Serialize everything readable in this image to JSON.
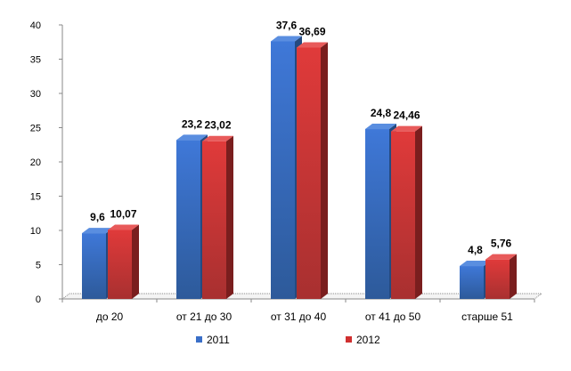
{
  "chart_data": {
    "type": "bar",
    "title": "",
    "xlabel": "",
    "ylabel": "",
    "ylim": [
      0,
      40
    ],
    "yticks": [
      0,
      5,
      10,
      15,
      20,
      25,
      30,
      35,
      40
    ],
    "categories": [
      "до 20",
      "от 21  до 30",
      "от 31  до 40",
      "от 41  до 50",
      "старше 51"
    ],
    "series": [
      {
        "name": "2011",
        "color": "#3a6fc8",
        "values": [
          9.6,
          23.2,
          37.6,
          24.8,
          4.8
        ],
        "labels": [
          "9,6",
          "23,2",
          "37,6",
          "24,8",
          "4,8"
        ]
      },
      {
        "name": "2012",
        "color": "#d03030",
        "values": [
          10.07,
          23.02,
          36.69,
          24.46,
          5.76
        ],
        "labels": [
          "10,07",
          "23,02",
          "36,69",
          "24,46",
          "5,76"
        ]
      }
    ],
    "legend_position": "bottom",
    "grid": false
  }
}
